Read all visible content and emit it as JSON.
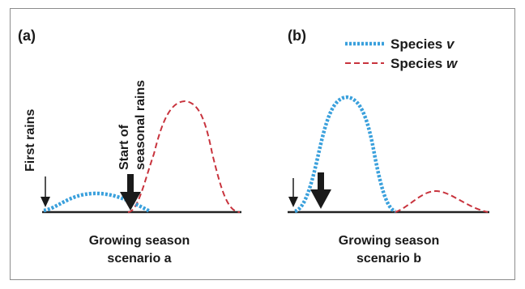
{
  "panels": [
    {
      "letter": "(a)",
      "caption_line1": "Growing season",
      "caption_line2": "scenario a",
      "first_rains_label": "First rains",
      "seasonal_label_line1": "Start of",
      "seasonal_label_line2": "seasonal rains"
    },
    {
      "letter": "(b)",
      "caption_line1": "Growing season",
      "caption_line2": "scenario b"
    }
  ],
  "legend": {
    "v": {
      "prefix": "Species ",
      "letter": "v",
      "color": "#3aa0dc",
      "style": "dotted"
    },
    "w": {
      "prefix": "Species ",
      "letter": "w",
      "color": "#c8333d",
      "style": "dashed"
    }
  },
  "colors": {
    "axis": "#222222",
    "arrow": "#1a1a1a"
  }
}
